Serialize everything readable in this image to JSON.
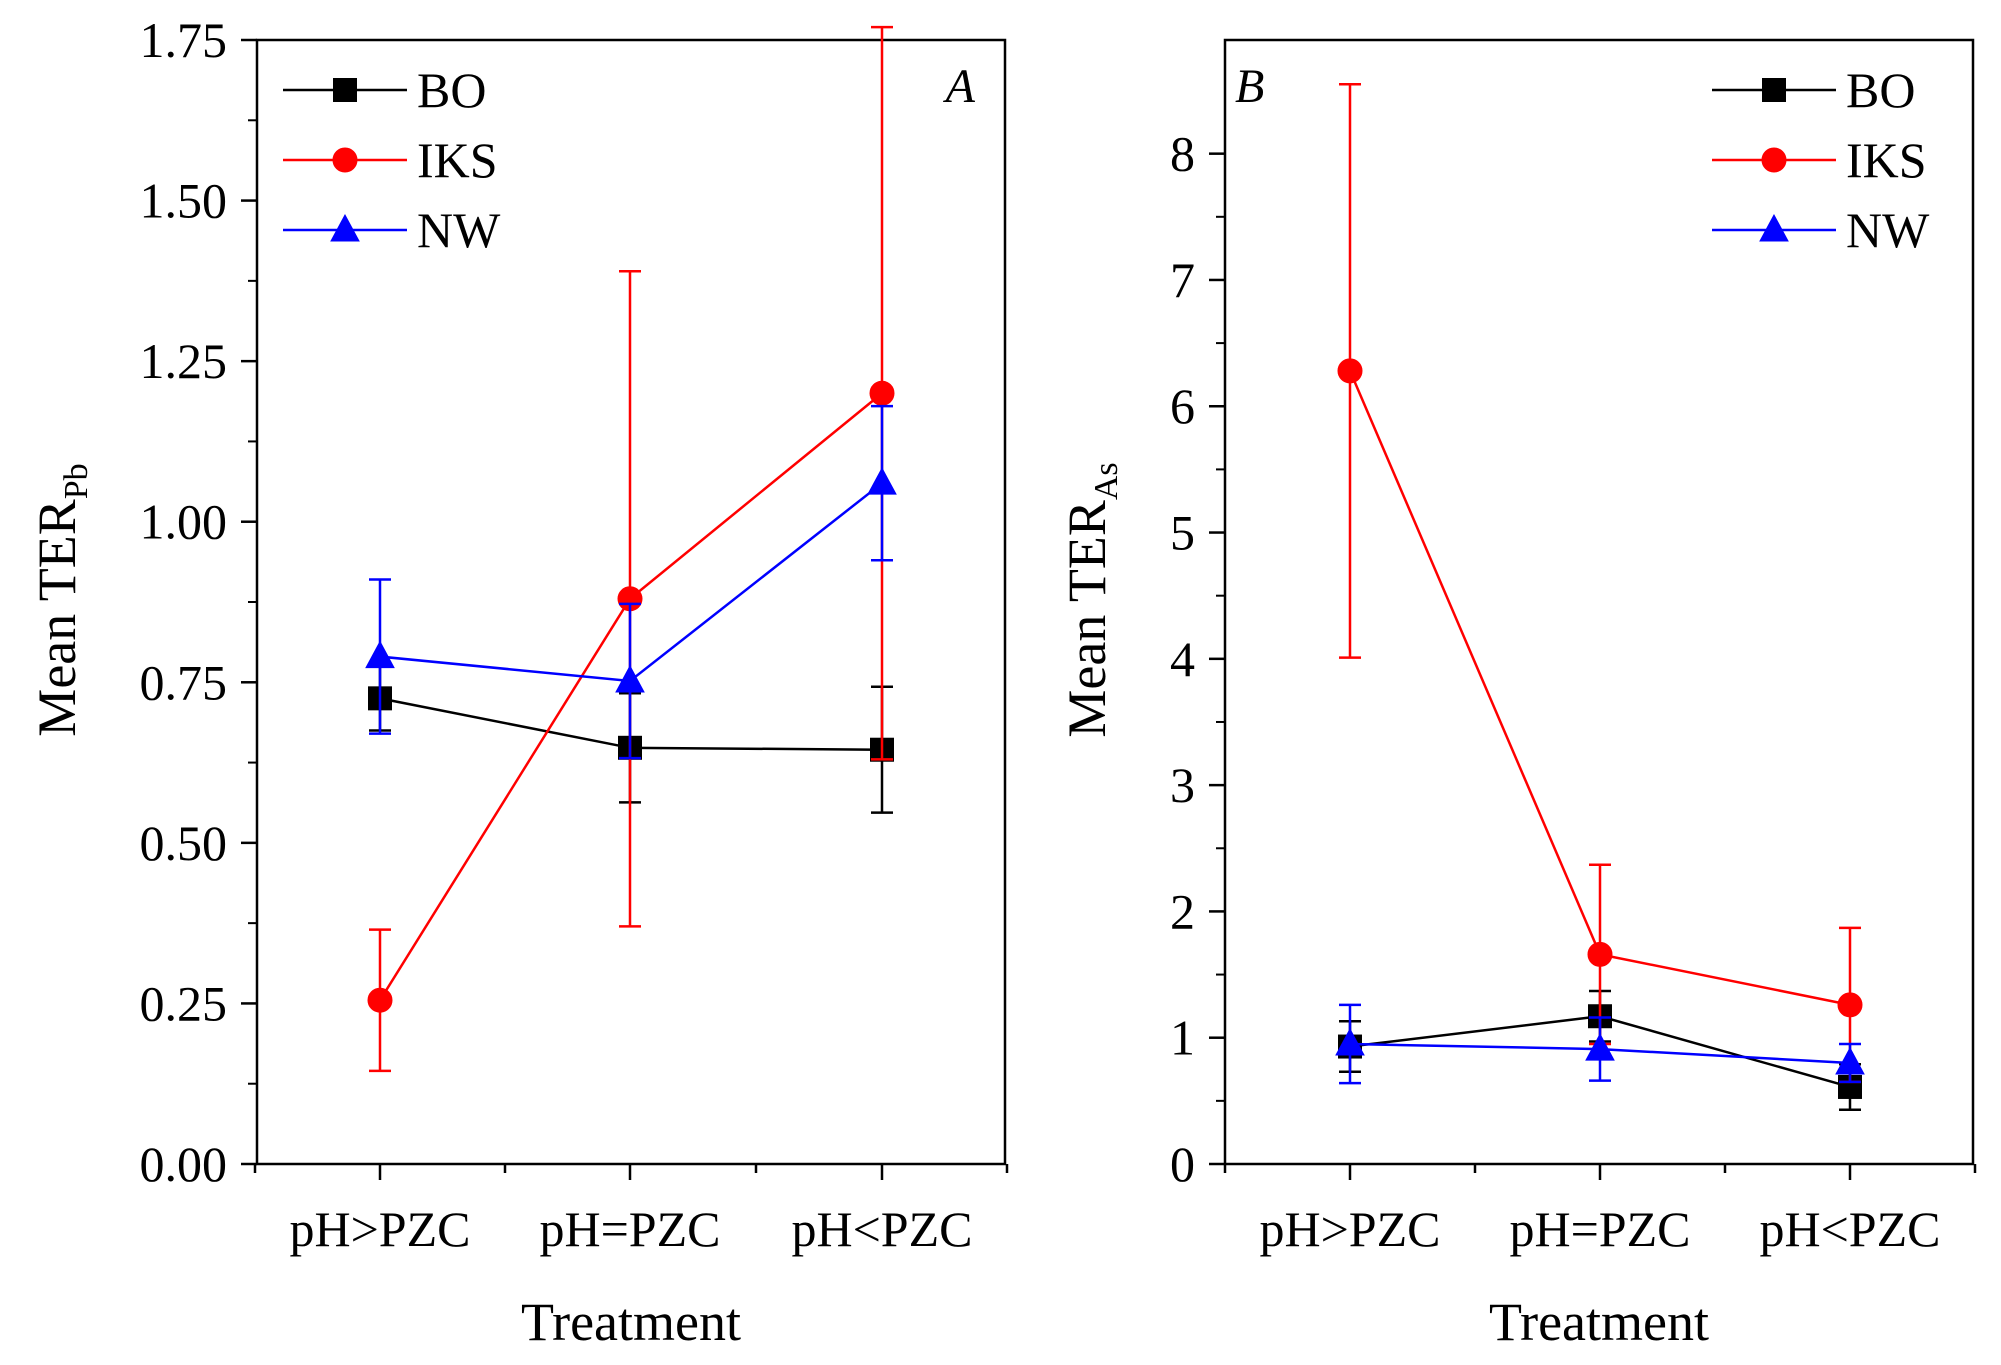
{
  "chart_data": [
    {
      "type": "line",
      "panel": "A",
      "title": "",
      "xlabel": "Treatment",
      "ylabel": "Mean TER",
      "ylabel_sub": "Pb",
      "categories": [
        "pH>PZC",
        "pH=PZC",
        "pH<PZC"
      ],
      "ylim": [
        0,
        1.75
      ],
      "yticks": [
        "0.00",
        "0.25",
        "0.50",
        "0.75",
        "1.00",
        "1.25",
        "1.50",
        "1.75"
      ],
      "ytick_values": [
        0,
        0.25,
        0.5,
        0.75,
        1.0,
        1.25,
        1.5,
        1.75
      ],
      "legend_position": "top-left",
      "series": [
        {
          "name": "BO",
          "color": "#000000",
          "marker": "square",
          "values": [
            0.725,
            0.648,
            0.645
          ],
          "errors": [
            0.05,
            0.085,
            0.098
          ]
        },
        {
          "name": "IKS",
          "color": "#ff0000",
          "marker": "circle",
          "values": [
            0.255,
            0.88,
            1.2
          ],
          "errors": [
            0.11,
            0.51,
            0.57
          ]
        },
        {
          "name": "NW",
          "color": "#0000ff",
          "marker": "triangle",
          "values": [
            0.79,
            0.752,
            1.06
          ],
          "errors": [
            0.12,
            0.12,
            0.12
          ]
        }
      ]
    },
    {
      "type": "line",
      "panel": "B",
      "title": "",
      "xlabel": "Treatment",
      "ylabel": "Mean TER",
      "ylabel_sub": "As",
      "categories": [
        "pH>PZC",
        "pH=PZC",
        "pH<PZC"
      ],
      "ylim": [
        0,
        8.9
      ],
      "yticks": [
        "0",
        "1",
        "2",
        "3",
        "4",
        "5",
        "6",
        "7",
        "8"
      ],
      "ytick_values": [
        0,
        1,
        2,
        3,
        4,
        5,
        6,
        7,
        8
      ],
      "legend_position": "top-right",
      "series": [
        {
          "name": "BO",
          "color": "#000000",
          "marker": "square",
          "values": [
            0.93,
            1.17,
            0.61
          ],
          "errors": [
            0.2,
            0.2,
            0.18
          ]
        },
        {
          "name": "IKS",
          "color": "#ff0000",
          "marker": "circle",
          "values": [
            6.28,
            1.66,
            1.26
          ],
          "errors": [
            2.27,
            0.71,
            0.61
          ]
        },
        {
          "name": "NW",
          "color": "#0000ff",
          "marker": "triangle",
          "values": [
            0.95,
            0.91,
            0.8
          ],
          "errors": [
            0.31,
            0.25,
            0.15
          ]
        }
      ]
    }
  ]
}
